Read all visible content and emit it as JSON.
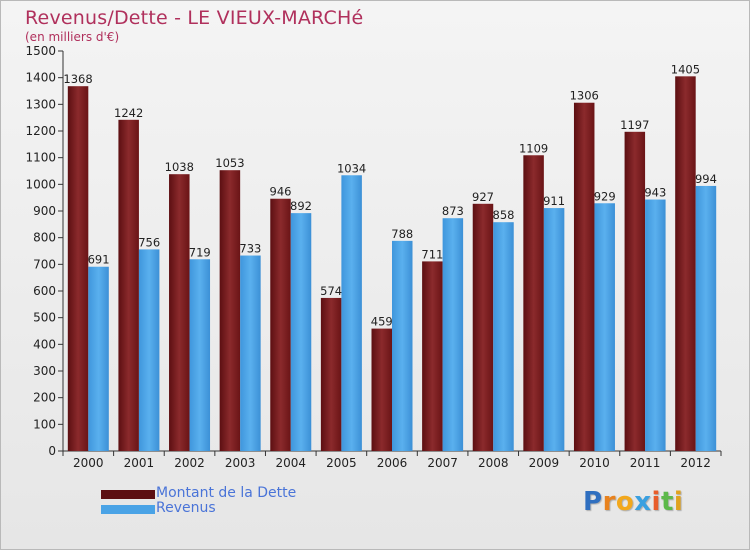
{
  "colors": {
    "title": "#b0305c",
    "series_dette": "#7a1a1c",
    "series_revenus": "#4aa3e6",
    "legend_text": "#4a74d8"
  },
  "logo": {
    "letters": [
      {
        "ch": "P",
        "color": "#2f6fc0"
      },
      {
        "ch": "r",
        "color": "#e8821e"
      },
      {
        "ch": "o",
        "color": "#f2a81d"
      },
      {
        "ch": "x",
        "color": "#3aa0e0"
      },
      {
        "ch": "i",
        "color": "#e85c2a"
      },
      {
        "ch": "t",
        "color": "#5db94a"
      },
      {
        "ch": "i",
        "color": "#e0a21e"
      }
    ]
  },
  "chart_data": {
    "type": "bar",
    "title": "Revenus/Dette - LE VIEUX-MARCHé",
    "subtitle": "(en milliers d'€)",
    "xlabel": "",
    "ylabel": "",
    "categories": [
      "2000",
      "2001",
      "2002",
      "2003",
      "2004",
      "2005",
      "2006",
      "2007",
      "2008",
      "2009",
      "2010",
      "2011",
      "2012"
    ],
    "ylim": [
      0,
      1500
    ],
    "yticks": [
      0,
      100,
      200,
      300,
      400,
      500,
      600,
      700,
      800,
      900,
      1000,
      1100,
      1200,
      1300,
      1400,
      1500
    ],
    "grid": false,
    "legend_placement": "bottom-left",
    "series": [
      {
        "name": "Montant de la Dette",
        "values": [
          1368,
          1242,
          1038,
          1053,
          946,
          574,
          459,
          711,
          927,
          1109,
          1306,
          1197,
          1405
        ]
      },
      {
        "name": "Revenus",
        "values": [
          691,
          756,
          719,
          733,
          892,
          1034,
          788,
          873,
          858,
          911,
          929,
          943,
          994
        ]
      }
    ]
  }
}
